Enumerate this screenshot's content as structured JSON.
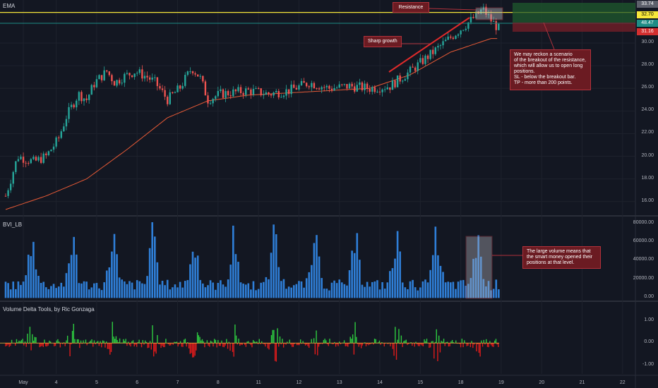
{
  "panes": {
    "main_label": "EMA",
    "volume_label": "BVI_LB",
    "delta_label": "Volume Delta Tools, by Ric Gonzaga"
  },
  "annotations": {
    "resistance": "Resistance",
    "sharp_growth": "Sharp growth",
    "scenario": [
      "We may reckon a scenario",
      "of the breakout of the resistance,",
      "which will allow us to open long",
      "positions.",
      "SL - below the breakout bar.",
      "TP - more than 200 points."
    ],
    "volume_note": [
      "The large volume means that",
      "the smart money opened their",
      "positions at that level."
    ]
  },
  "price_tags": {
    "top": "33.74",
    "resistance": "32.70",
    "last": "48.47",
    "stop": "31.16"
  },
  "colors": {
    "background": "#131722",
    "up_candle": "#26a69a",
    "down_candle": "#ef5350",
    "ema": "#e85a36",
    "resistance_line": "#f5e63a",
    "volume_bar": "#2f7fd8",
    "delta_up": "#2ecc40",
    "delta_down": "#e01b1b",
    "note_fill": "#6b1b22"
  },
  "chart_data": [
    {
      "type": "candlestick",
      "title": "",
      "x_ticks": [
        "May",
        "4",
        "5",
        "6",
        "7",
        "8",
        "11",
        "12",
        "13",
        "14",
        "15",
        "18",
        "19",
        "20",
        "21",
        "22"
      ],
      "y_ticks": [
        "16.00",
        "18.00",
        "20.00",
        "22.00",
        "24.00",
        "26.00",
        "28.00",
        "30.00"
      ],
      "ylim": [
        14.8,
        33.8
      ],
      "resistance_level": 32.7,
      "ema_series": [
        [
          0,
          15.3
        ],
        [
          1,
          16.5
        ],
        [
          2,
          18.0
        ],
        [
          3,
          20.6
        ],
        [
          4,
          23.4
        ],
        [
          5,
          24.9
        ],
        [
          6,
          25.4
        ],
        [
          7,
          25.6
        ],
        [
          8,
          25.8
        ],
        [
          9,
          26.0
        ],
        [
          10,
          27.2
        ],
        [
          11,
          29.2
        ],
        [
          12,
          30.4
        ]
      ],
      "close_path": [
        [
          0,
          16.5
        ],
        [
          0.3,
          20.0
        ],
        [
          0.7,
          19.5
        ],
        [
          1.0,
          20.0
        ],
        [
          1.3,
          21.5
        ],
        [
          1.5,
          23.5
        ],
        [
          1.8,
          25.5
        ],
        [
          2.0,
          25.0
        ],
        [
          2.2,
          26.5
        ],
        [
          2.5,
          27.5
        ],
        [
          2.7,
          26.5
        ],
        [
          2.9,
          27.0
        ],
        [
          3.2,
          27.5
        ],
        [
          3.5,
          27.0
        ],
        [
          3.7,
          26.5
        ],
        [
          4.0,
          25.0
        ],
        [
          4.3,
          26.0
        ],
        [
          4.6,
          27.8
        ],
        [
          4.8,
          27.0
        ],
        [
          5.0,
          25.0
        ],
        [
          5.3,
          25.5
        ],
        [
          6.0,
          25.8
        ],
        [
          6.5,
          25.5
        ],
        [
          7.0,
          25.8
        ],
        [
          7.5,
          26.5
        ],
        [
          8.0,
          26.0
        ],
        [
          8.5,
          26.2
        ],
        [
          9.0,
          26.0
        ],
        [
          9.5,
          26.2
        ],
        [
          10.0,
          27.5
        ],
        [
          10.5,
          29.0
        ],
        [
          11.0,
          30.5
        ],
        [
          11.5,
          32.0
        ],
        [
          11.8,
          33.0
        ],
        [
          12.0,
          32.0
        ],
        [
          12.2,
          31.2
        ]
      ]
    },
    {
      "type": "bar",
      "title": "",
      "y_ticks": [
        "0.00",
        "20000.00",
        "40000.00",
        "60000.00",
        "80000.00"
      ],
      "ylim": [
        -2000,
        85000
      ]
    },
    {
      "type": "area",
      "title": "",
      "y_ticks": [
        "1.00",
        "0.00",
        "-1.00"
      ],
      "ylim": [
        -1.4,
        1.8
      ]
    }
  ]
}
